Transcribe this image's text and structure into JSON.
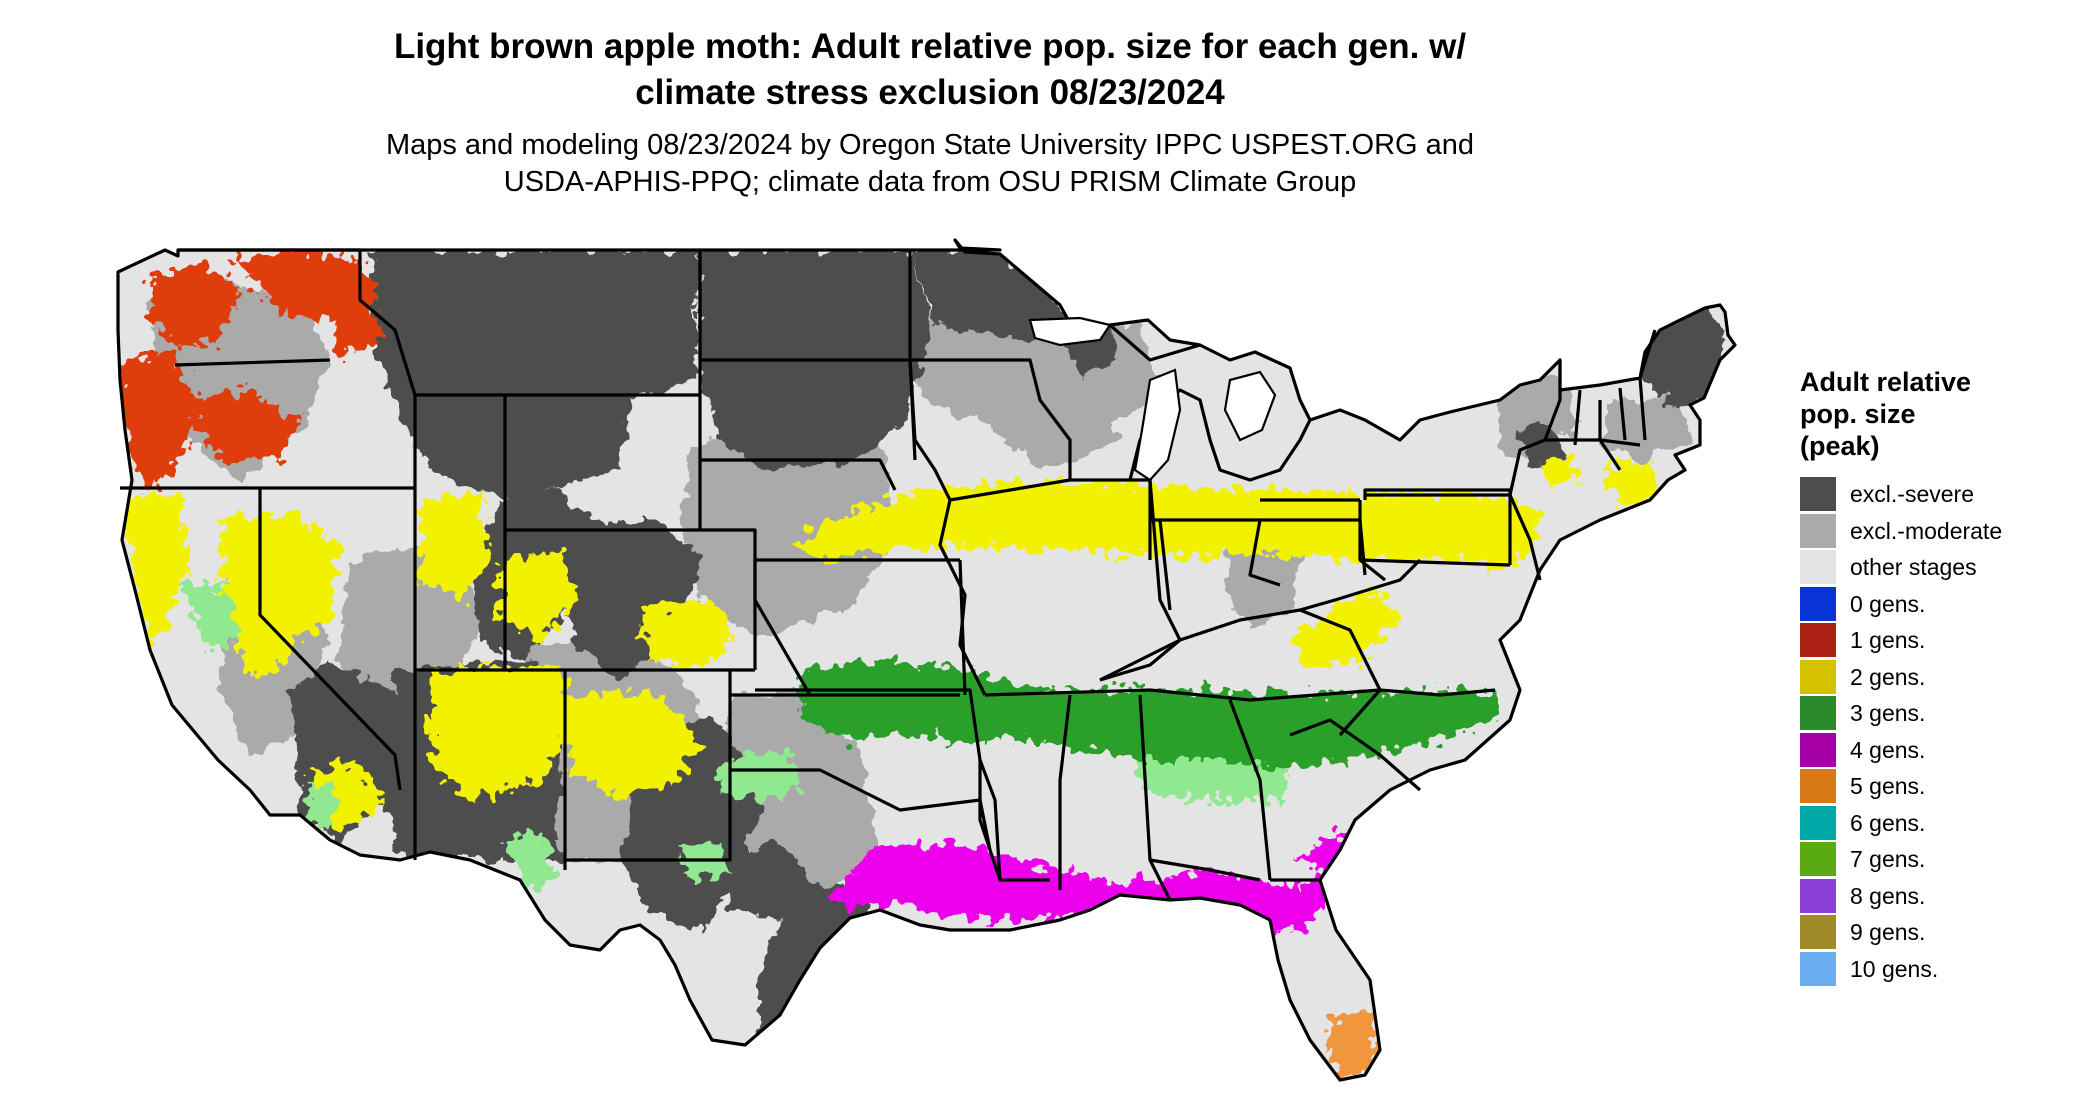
{
  "map": {
    "title_line1": "Light brown apple moth: Adult relative pop. size for each gen. w/",
    "title_line2": "climate stress exclusion 08/23/2024",
    "subtitle_line1": "Maps and modeling 08/23/2024 by Oregon State University IPPC USPEST.ORG and",
    "subtitle_line2": "USDA-APHIS-PPQ; climate data from OSU PRISM Climate Group",
    "region": "Contiguous United States"
  },
  "legend": {
    "title_line1": "Adult relative",
    "title_line2": "pop. size",
    "title_line3": "(peak)",
    "items": [
      {
        "label": "excl.-severe",
        "color": "#4d4d4d"
      },
      {
        "label": "excl.-moderate",
        "color": "#aaaaaa"
      },
      {
        "label": "other stages",
        "color": "#e4e4e4"
      },
      {
        "label": "0 gens.",
        "color": "#0a33d6"
      },
      {
        "label": "1 gens.",
        "color": "#aa2014"
      },
      {
        "label": "2 gens.",
        "color": "#d4c200"
      },
      {
        "label": "3 gens.",
        "color": "#2a8a2a"
      },
      {
        "label": "4 gens.",
        "color": "#a800a8"
      },
      {
        "label": "5 gens.",
        "color": "#d87918"
      },
      {
        "label": "6 gens.",
        "color": "#00a8a8"
      },
      {
        "label": "7 gens.",
        "color": "#5aaa14"
      },
      {
        "label": "8 gens.",
        "color": "#8a40d8"
      },
      {
        "label": "9 gens.",
        "color": "#a08a28"
      },
      {
        "label": "10 gens.",
        "color": "#6aacf0"
      }
    ]
  },
  "zone_colors": {
    "severe": "#4d4d4d",
    "moderate": "#aaaaaa",
    "other": "#e4e4e4",
    "gen1_map": "#e03c10",
    "gen2_map": "#f2f200",
    "gen3_map": "#4cc44c",
    "gen3_light": "#90e890",
    "gen4_map": "#ec00ec",
    "gen5_map": "#f0963c",
    "border": "#000000"
  }
}
